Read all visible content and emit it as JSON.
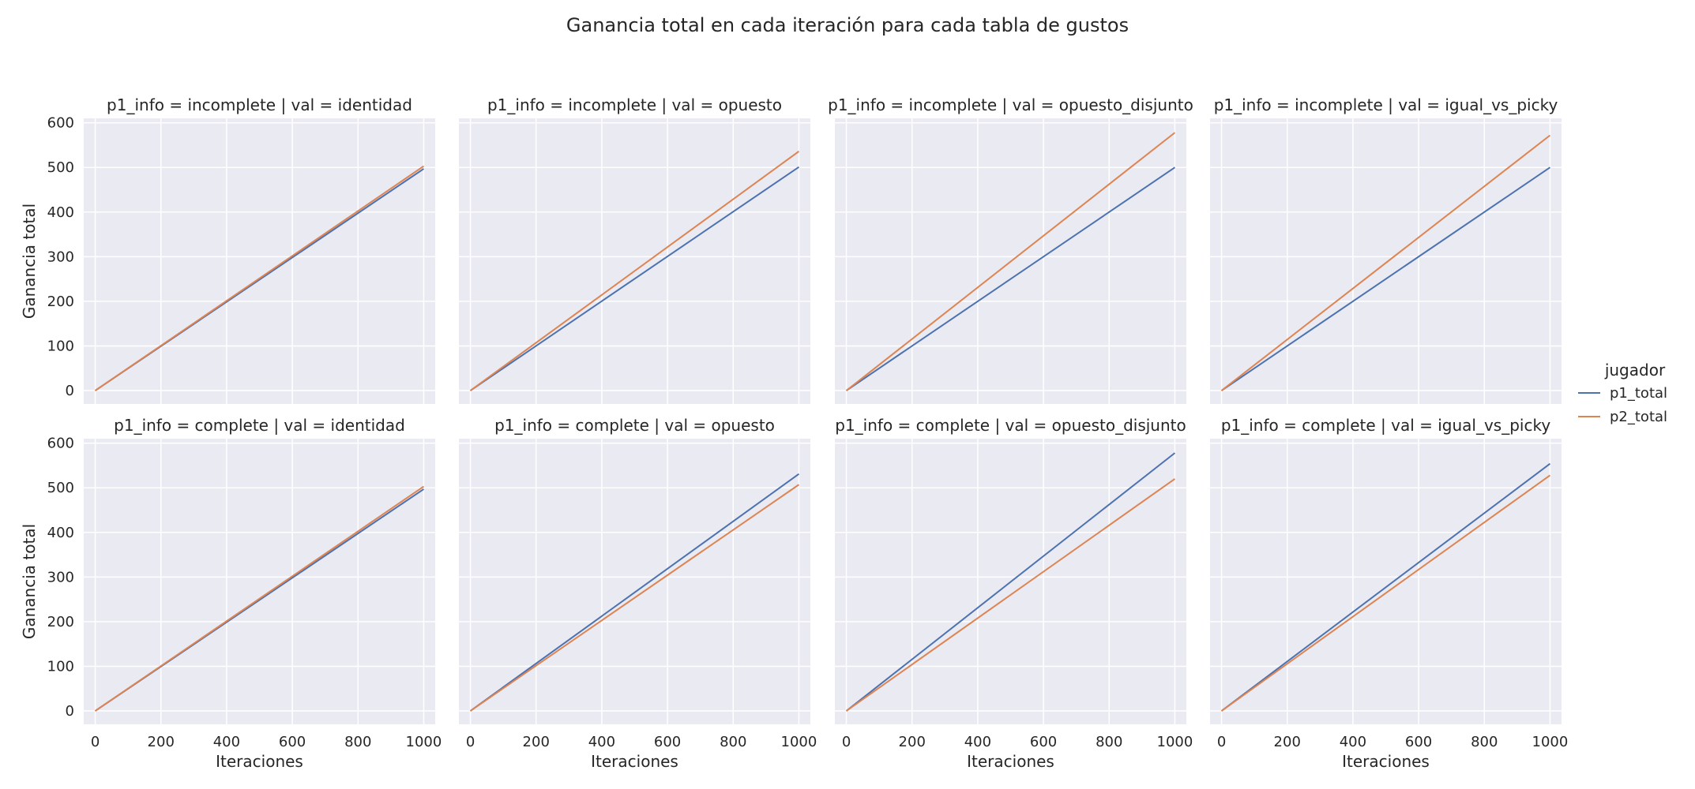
{
  "title": "Ganancia total en cada iteración para cada tabla de gustos",
  "legend": {
    "title": "jugador",
    "entries": [
      {
        "label": "p1_total",
        "color": "#4c72b0"
      },
      {
        "label": "p2_total",
        "color": "#dd8452"
      }
    ]
  },
  "colors": {
    "p1_total": "#4c72b0",
    "p2_total": "#dd8452",
    "panel_bg": "#eaeaf2",
    "grid": "#ffffff"
  },
  "chart_data": {
    "type": "line",
    "xlabel": "Iteraciones",
    "ylabel": "Ganancia total",
    "xlim": [
      -35,
      1035
    ],
    "ylim": [
      -30,
      610
    ],
    "xticks": [
      0,
      200,
      400,
      600,
      800,
      1000
    ],
    "yticks": [
      0,
      100,
      200,
      300,
      400,
      500,
      600
    ],
    "grid": true,
    "legend_placement": "right",
    "panels": [
      {
        "title": "p1_info = incomplete | val = identidad",
        "series": [
          {
            "name": "p1_total",
            "x": [
              0,
              1000
            ],
            "y": [
              0,
              497
            ]
          },
          {
            "name": "p2_total",
            "x": [
              0,
              1000
            ],
            "y": [
              0,
              503
            ]
          }
        ]
      },
      {
        "title": "p1_info = incomplete | val = opuesto",
        "series": [
          {
            "name": "p1_total",
            "x": [
              0,
              1000
            ],
            "y": [
              0,
              501
            ]
          },
          {
            "name": "p2_total",
            "x": [
              0,
              1000
            ],
            "y": [
              0,
              536
            ]
          }
        ]
      },
      {
        "title": "p1_info = incomplete | val = opuesto_disjunto",
        "series": [
          {
            "name": "p1_total",
            "x": [
              0,
              1000
            ],
            "y": [
              0,
              500
            ]
          },
          {
            "name": "p2_total",
            "x": [
              0,
              1000
            ],
            "y": [
              0,
              578
            ]
          }
        ]
      },
      {
        "title": "p1_info = incomplete | val = igual_vs_picky",
        "series": [
          {
            "name": "p1_total",
            "x": [
              0,
              1000
            ],
            "y": [
              0,
              500
            ]
          },
          {
            "name": "p2_total",
            "x": [
              0,
              1000
            ],
            "y": [
              0,
              572
            ]
          }
        ]
      },
      {
        "title": "p1_info = complete | val = identidad",
        "series": [
          {
            "name": "p1_total",
            "x": [
              0,
              1000
            ],
            "y": [
              0,
              497
            ]
          },
          {
            "name": "p2_total",
            "x": [
              0,
              1000
            ],
            "y": [
              0,
              503
            ]
          }
        ]
      },
      {
        "title": "p1_info = complete | val = opuesto",
        "series": [
          {
            "name": "p1_total",
            "x": [
              0,
              1000
            ],
            "y": [
              0,
              531
            ]
          },
          {
            "name": "p2_total",
            "x": [
              0,
              1000
            ],
            "y": [
              0,
              507
            ]
          }
        ]
      },
      {
        "title": "p1_info = complete | val = opuesto_disjunto",
        "series": [
          {
            "name": "p1_total",
            "x": [
              0,
              1000
            ],
            "y": [
              0,
              578
            ]
          },
          {
            "name": "p2_total",
            "x": [
              0,
              1000
            ],
            "y": [
              0,
              520
            ]
          }
        ]
      },
      {
        "title": "p1_info = complete | val = igual_vs_picky",
        "series": [
          {
            "name": "p1_total",
            "x": [
              0,
              1000
            ],
            "y": [
              0,
              554
            ]
          },
          {
            "name": "p2_total",
            "x": [
              0,
              1000
            ],
            "y": [
              0,
              528
            ]
          }
        ]
      }
    ]
  }
}
